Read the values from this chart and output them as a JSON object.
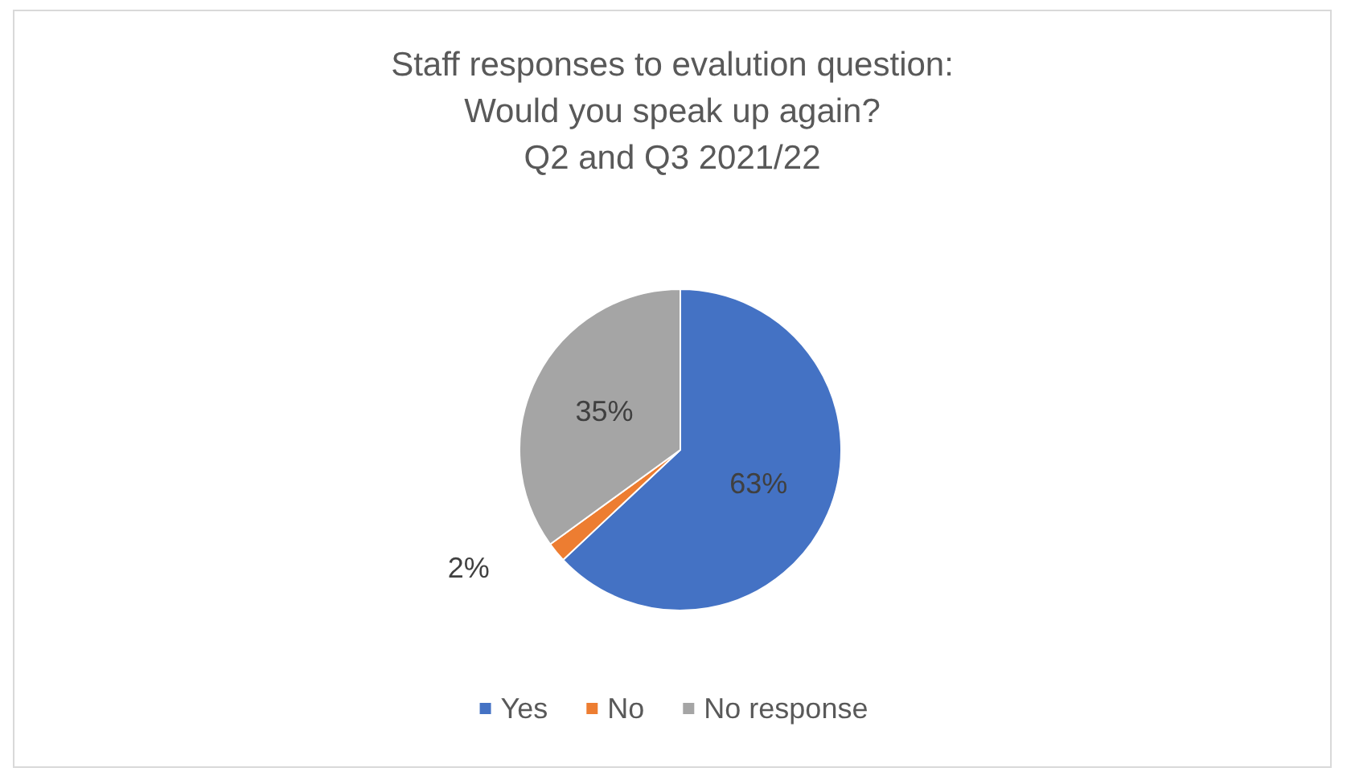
{
  "chart_data": {
    "type": "pie",
    "title": "Staff responses to evalution question:\nWould you speak up again?\nQ2 and Q3 2021/22",
    "categories": [
      "Yes",
      "No",
      "No response"
    ],
    "values": [
      63,
      2,
      35
    ],
    "colors": [
      "#4472c4",
      "#ed7d31",
      "#a5a5a5"
    ],
    "value_labels": [
      "63%",
      "2%",
      "35%"
    ],
    "legend": "bottom"
  }
}
